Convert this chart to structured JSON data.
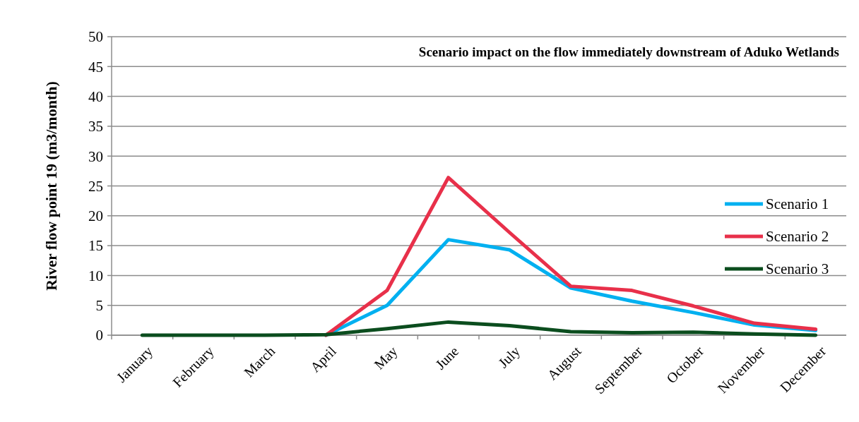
{
  "chart_data": {
    "type": "line",
    "title": "Scenario impact on the flow immediately downstream of Aduko Wetlands",
    "ylabel": "River flow point 19 (m3/month)",
    "categories": [
      "January",
      "February",
      "March",
      "April",
      "May",
      "June",
      "July",
      "August",
      "September",
      "October",
      "November",
      "December"
    ],
    "series": [
      {
        "name": "Scenario 1",
        "color": "#00b0f0",
        "values": [
          null,
          null,
          null,
          0,
          5,
          16,
          14.3,
          7.9,
          5.7,
          3.8,
          1.7,
          0.8
        ]
      },
      {
        "name": "Scenario 2",
        "color": "#e8304a",
        "values": [
          null,
          null,
          null,
          0,
          7.5,
          26.4,
          17.2,
          8.2,
          7.5,
          4.9,
          2,
          1
        ]
      },
      {
        "name": "Scenario 3",
        "color": "#0b4d1e",
        "values": [
          0,
          0,
          0,
          0.1,
          1.1,
          2.2,
          1.6,
          0.6,
          0.4,
          0.5,
          0.2,
          0
        ]
      }
    ],
    "ylim": [
      0,
      50
    ],
    "yticks": [
      0,
      5,
      10,
      15,
      20,
      25,
      30,
      35,
      40,
      45,
      50
    ],
    "grid": "y",
    "legend": "right",
    "marker": "none",
    "line_style": "solid"
  }
}
